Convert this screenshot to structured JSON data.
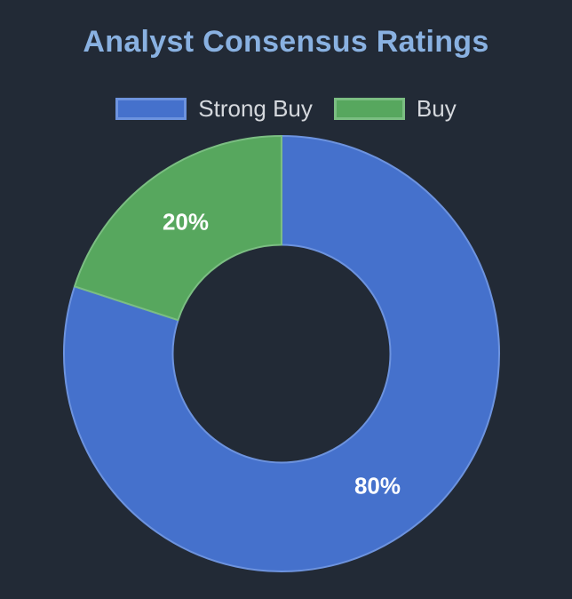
{
  "page": {
    "background": "#222A36"
  },
  "header": {
    "title": "Analyst Consensus Ratings",
    "title_color": "#89B1E1"
  },
  "legend": {
    "items": [
      {
        "label": "Strong Buy",
        "color": "#4571CC",
        "border": "#6D93DE"
      },
      {
        "label": "Buy",
        "color": "#57A75E",
        "border": "#7BBE82"
      }
    ],
    "text_color": "#D5D8DD",
    "position": "top"
  },
  "chart_data": {
    "type": "pie",
    "variant": "doughnut",
    "title": "Analyst Consensus Ratings",
    "categories": [
      "Strong Buy",
      "Buy"
    ],
    "values": [
      80,
      20
    ],
    "value_labels": [
      "80%",
      "20%"
    ],
    "colors": [
      "#4571CC",
      "#57A75E"
    ],
    "border_colors": [
      "#6D93DE",
      "#7BBE82"
    ],
    "label_color": "#FFFFFF",
    "cutout_percent": 50,
    "start_angle_deg": 0,
    "direction": "clockwise",
    "legend_position": "top",
    "legend_entries": [
      "Strong Buy",
      "Buy"
    ]
  }
}
